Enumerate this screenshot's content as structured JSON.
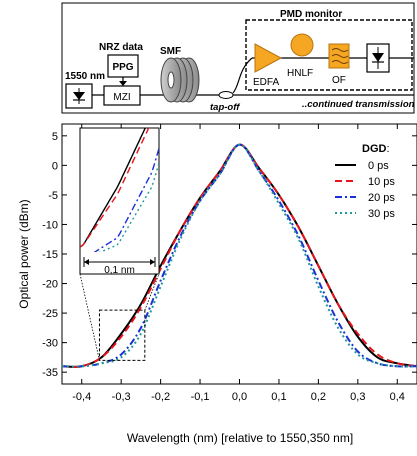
{
  "setup": {
    "laser_label": "1550 nm",
    "ppg_label": "PPG",
    "nrz_label": "NRZ data",
    "mzi_label": "MZI",
    "smf_label": "SMF",
    "tapoff_label": "tap-off",
    "continued_label": "..continued transmission",
    "monitor_label": "PMD monitor",
    "edfa_label": "EDFA",
    "hnlf_label": "HNLF",
    "of_label": "OF"
  },
  "colors": {
    "s0": "#000000",
    "s10": "#e8141b",
    "s20": "#1a2fd6",
    "s30": "#1f9a9a"
  },
  "chart_data": {
    "type": "line",
    "xlabel": "Wavelength (nm) [relative to 1550,350 nm]",
    "ylabel": "Optical power (dBm)",
    "xlim": [
      -0.45,
      0.45
    ],
    "ylim": [
      -37,
      7
    ],
    "xticks": [
      -0.4,
      -0.3,
      -0.2,
      -0.1,
      0.0,
      0.1,
      0.2,
      0.3,
      0.4
    ],
    "xtick_labels": [
      "-0,4",
      "-0,3",
      "-0,2",
      "-0,1",
      "0,0",
      "0,1",
      "0,2",
      "0,3",
      "0,4"
    ],
    "yticks": [
      5,
      0,
      -5,
      -10,
      -15,
      -20,
      -25,
      -30,
      -35
    ],
    "ytick_labels": [
      "5",
      "0",
      "-5",
      "-10",
      "-15",
      "-20",
      "-25",
      "-30",
      "-35"
    ],
    "legend_title": "DGD",
    "legend_title_suffix": ":",
    "legend_position": "top-right",
    "inset_scale_label": "0,1 nm",
    "inset_region": {
      "x": [
        -0.355,
        -0.24
      ],
      "y": [
        -33,
        -24.5
      ]
    },
    "x": [
      -0.45,
      -0.4,
      -0.35,
      -0.3,
      -0.25,
      -0.2,
      -0.15,
      -0.1,
      -0.05,
      0.0,
      0.05,
      0.1,
      0.15,
      0.2,
      0.25,
      0.3,
      0.35,
      0.4,
      0.45
    ],
    "series": [
      {
        "name": "0 ps",
        "color": "#000000",
        "dash": "",
        "values": [
          -34,
          -34,
          -32.5,
          -28.5,
          -23.5,
          -17,
          -11,
          -5.5,
          -1,
          3.5,
          -0.5,
          -5,
          -10.5,
          -17,
          -23.5,
          -29,
          -32.5,
          -33.5,
          -34
        ]
      },
      {
        "name": "10 ps",
        "color": "#e8141b",
        "dash": "7 4",
        "values": [
          -34,
          -34,
          -32.5,
          -29,
          -24,
          -17.5,
          -11,
          -5.5,
          -1,
          3.5,
          -0.5,
          -5,
          -10.5,
          -17,
          -23.5,
          -28.5,
          -32,
          -33.5,
          -34
        ]
      },
      {
        "name": "20 ps",
        "color": "#1a2fd6",
        "dash": "7 3 2 3",
        "values": [
          -34,
          -34,
          -33.5,
          -32,
          -27.5,
          -19.5,
          -12,
          -6,
          -1.5,
          3.5,
          -1,
          -6,
          -12,
          -19.5,
          -26.5,
          -31.5,
          -33.5,
          -34,
          -34
        ]
      },
      {
        "name": "30 ps",
        "color": "#1f9a9a",
        "dash": "2 3",
        "values": [
          -34,
          -34,
          -33.5,
          -32.5,
          -28.5,
          -20.5,
          -12.5,
          -6,
          -1.5,
          3.5,
          -1,
          -6.5,
          -12.5,
          -20.5,
          -27.5,
          -32,
          -33.5,
          -34,
          -34
        ]
      }
    ]
  }
}
